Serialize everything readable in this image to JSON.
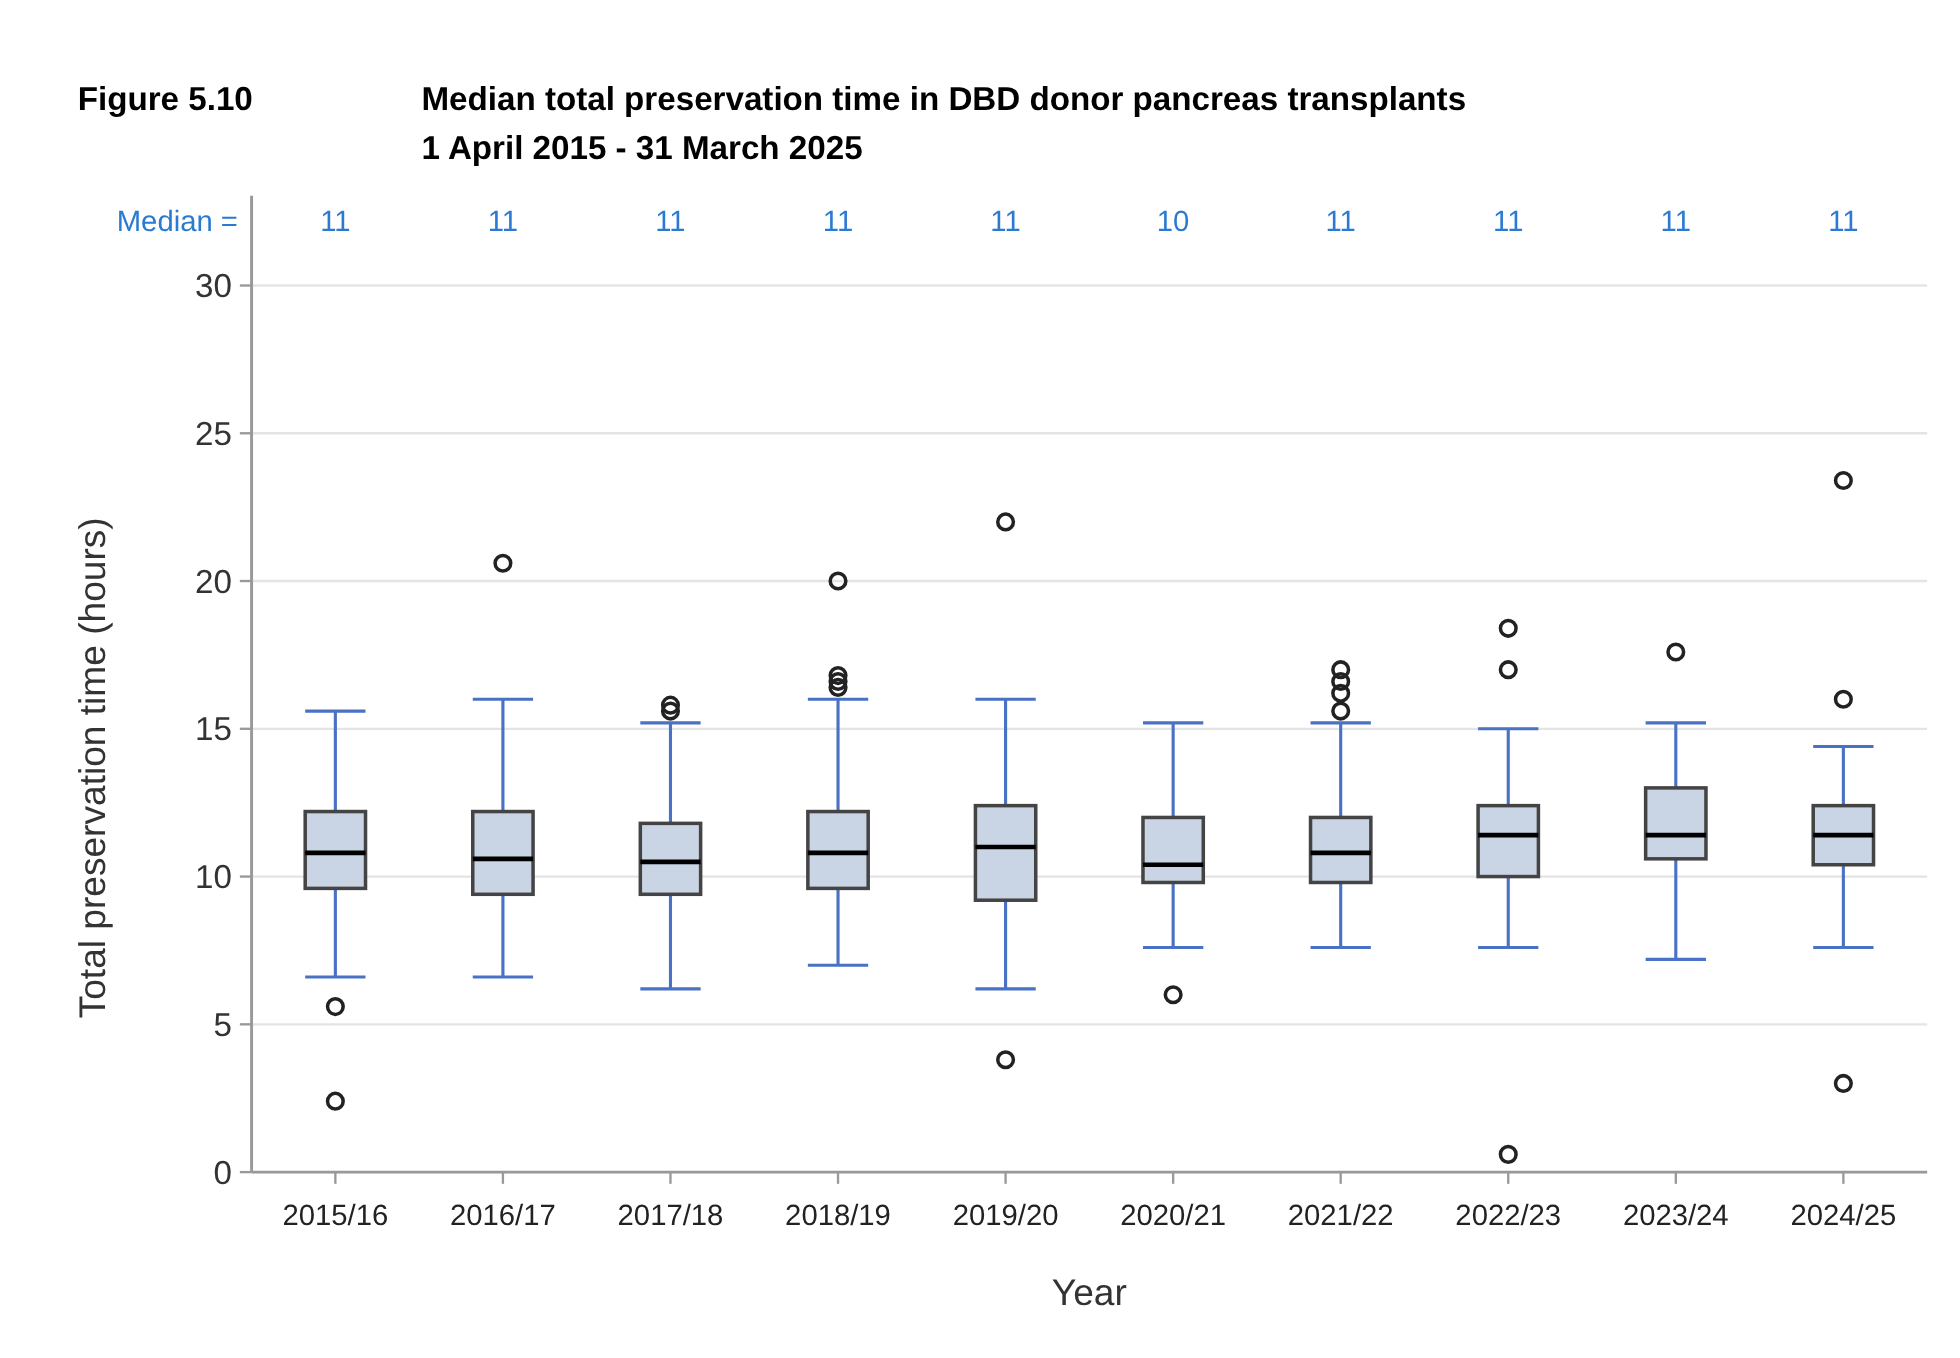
{
  "chart_data": {
    "type": "box",
    "title": "Median total preservation time in DBD donor pancreas transplants",
    "subtitle": "1 April 2015 - 31 March 2025",
    "xlabel": "Year",
    "ylabel": "Total preservation time (hours)",
    "categories": [
      "2015/16",
      "2016/17",
      "2017/18",
      "2018/19",
      "2019/20",
      "2020/21",
      "2021/22",
      "2022/23",
      "2023/24",
      "2024/25"
    ],
    "color": "#c9d5e5",
    "boxes": [
      {
        "low": 6.6,
        "q1": 9.6,
        "median": 10.8,
        "q3": 12.2,
        "high": 15.6,
        "outliers": [
          5.6,
          2.4
        ]
      },
      {
        "low": 6.6,
        "q1": 9.4,
        "median": 10.6,
        "q3": 12.2,
        "high": 16.0,
        "outliers": [
          20.6
        ]
      },
      {
        "low": 6.2,
        "q1": 9.4,
        "median": 10.5,
        "q3": 11.8,
        "high": 15.2,
        "outliers": [
          15.6,
          15.8
        ]
      },
      {
        "low": 7.0,
        "q1": 9.6,
        "median": 10.8,
        "q3": 12.2,
        "high": 16.0,
        "outliers": [
          16.4,
          16.6,
          16.8,
          20.0
        ]
      },
      {
        "low": 6.2,
        "q1": 9.2,
        "median": 11.0,
        "q3": 12.4,
        "high": 16.0,
        "outliers": [
          22.0,
          3.8
        ]
      },
      {
        "low": 7.6,
        "q1": 9.8,
        "median": 10.4,
        "q3": 12.0,
        "high": 15.2,
        "outliers": [
          6.0
        ]
      },
      {
        "low": 7.6,
        "q1": 9.8,
        "median": 10.8,
        "q3": 12.0,
        "high": 15.2,
        "outliers": [
          15.6,
          16.2,
          16.6,
          17.0
        ]
      },
      {
        "low": 7.6,
        "q1": 10.0,
        "median": 11.4,
        "q3": 12.4,
        "high": 15.0,
        "outliers": [
          17.0,
          18.4,
          0.6
        ]
      },
      {
        "low": 7.2,
        "q1": 10.6,
        "median": 11.4,
        "q3": 13.0,
        "high": 15.2,
        "outliers": [
          17.6
        ]
      },
      {
        "low": 7.6,
        "q1": 10.4,
        "median": 11.4,
        "q3": 12.4,
        "high": 14.4,
        "outliers": [
          16.0,
          23.4,
          3.0
        ]
      }
    ],
    "ylim": [
      0,
      30
    ],
    "yticks": [
      0,
      5,
      10,
      15,
      20,
      25,
      30
    ],
    "grid": "y",
    "annotations": [
      "Figure 5.10",
      "Median =",
      "11",
      "11",
      "11",
      "11",
      "11",
      "10",
      "11",
      "11",
      "11",
      "11"
    ]
  }
}
